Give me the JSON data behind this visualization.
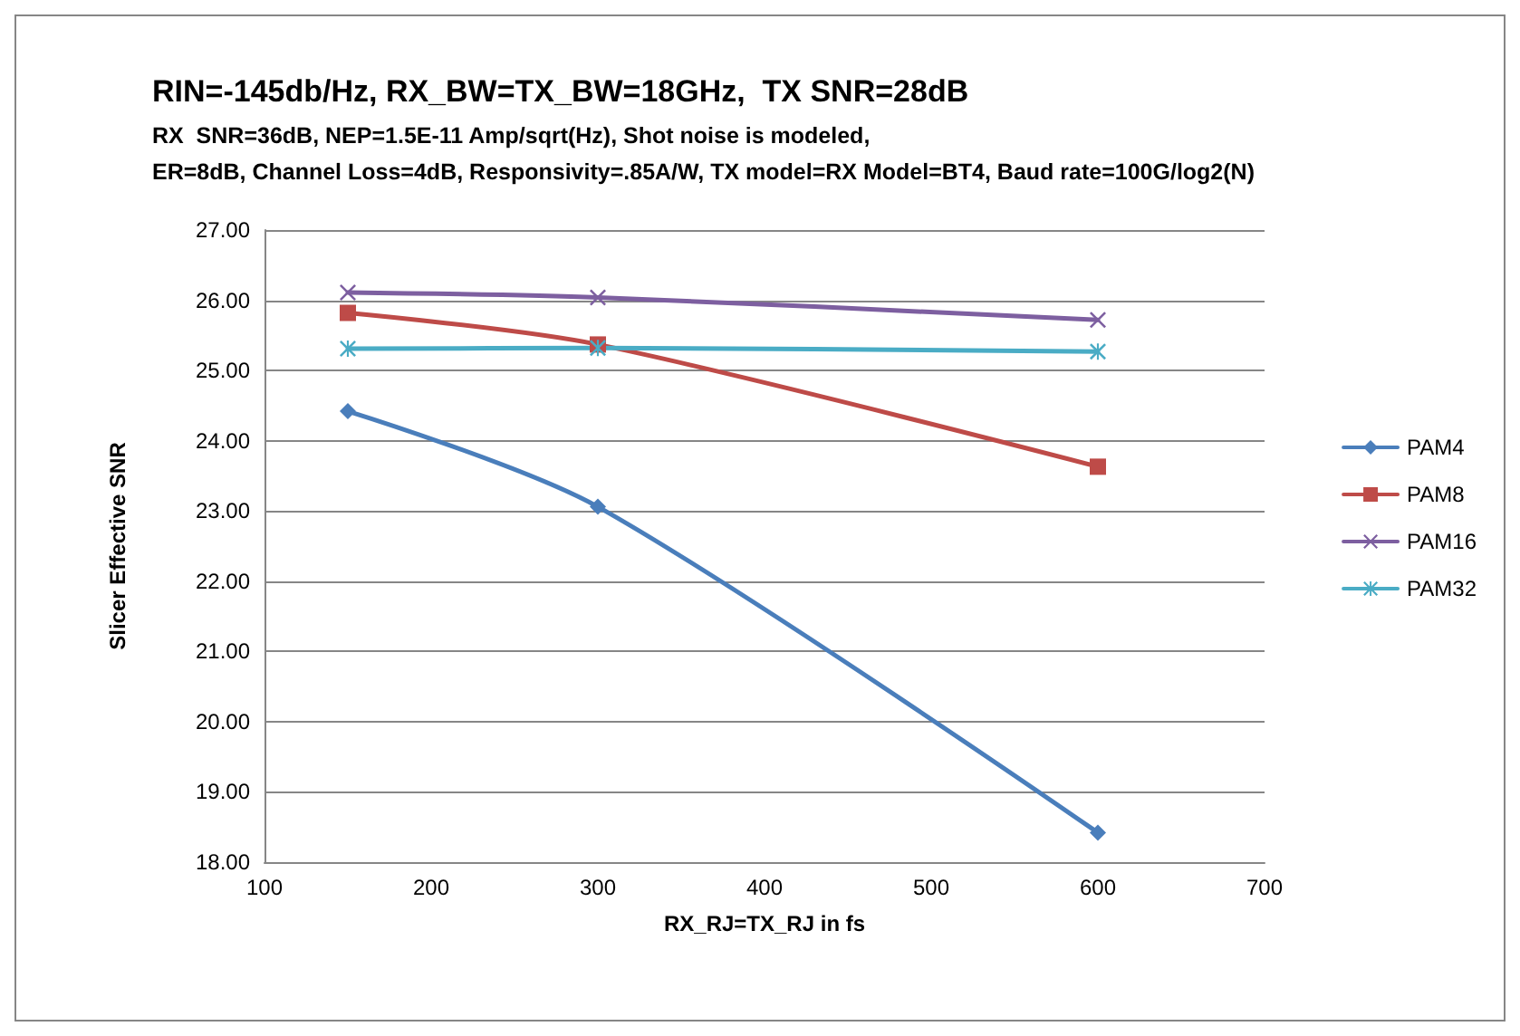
{
  "chart_data": {
    "type": "line",
    "title": "RIN=-145db/Hz, RX_BW=TX_BW=18GHz,  TX SNR=28dB",
    "subtitle": "RX  SNR=36dB, NEP=1.5E-11 Amp/sqrt(Hz), Shot noise is modeled,\nER=8dB, Channel Loss=4dB, Responsivity=.85A/W, TX model=RX Model=BT4, Baud rate=100G/log2(N)",
    "xlabel": "RX_RJ=TX_RJ in fs",
    "ylabel": "Slicer Effective SNR",
    "x": [
      150,
      300,
      600
    ],
    "series": [
      {
        "name": "PAM4",
        "color": "#4a7ebb",
        "marker": "diamond",
        "values": [
          24.42,
          23.06,
          18.42
        ]
      },
      {
        "name": "PAM8",
        "color": "#be4b48",
        "marker": "square",
        "values": [
          25.82,
          25.37,
          23.63
        ]
      },
      {
        "name": "PAM16",
        "color": "#7d5fa0",
        "marker": "cross",
        "values": [
          26.11,
          26.04,
          25.72
        ]
      },
      {
        "name": "PAM32",
        "color": "#4aacc5",
        "marker": "star",
        "values": [
          25.31,
          25.32,
          25.27
        ]
      }
    ],
    "xlim": [
      100,
      700
    ],
    "xticks": [
      100,
      200,
      300,
      400,
      500,
      600,
      700
    ],
    "ylim": [
      18,
      27
    ],
    "yticks": [
      {
        "value": 18,
        "label": "18.00"
      },
      {
        "value": 19,
        "label": "19.00"
      },
      {
        "value": 20,
        "label": "20.00"
      },
      {
        "value": 21,
        "label": "21.00"
      },
      {
        "value": 22,
        "label": "22.00"
      },
      {
        "value": 23,
        "label": "23.00"
      },
      {
        "value": 24,
        "label": "24.00"
      },
      {
        "value": 25,
        "label": "25.00"
      },
      {
        "value": 26,
        "label": "26.00"
      },
      {
        "value": 27,
        "label": "27.00"
      }
    ],
    "grid": "y",
    "legend": "right",
    "line_style": "solid"
  }
}
